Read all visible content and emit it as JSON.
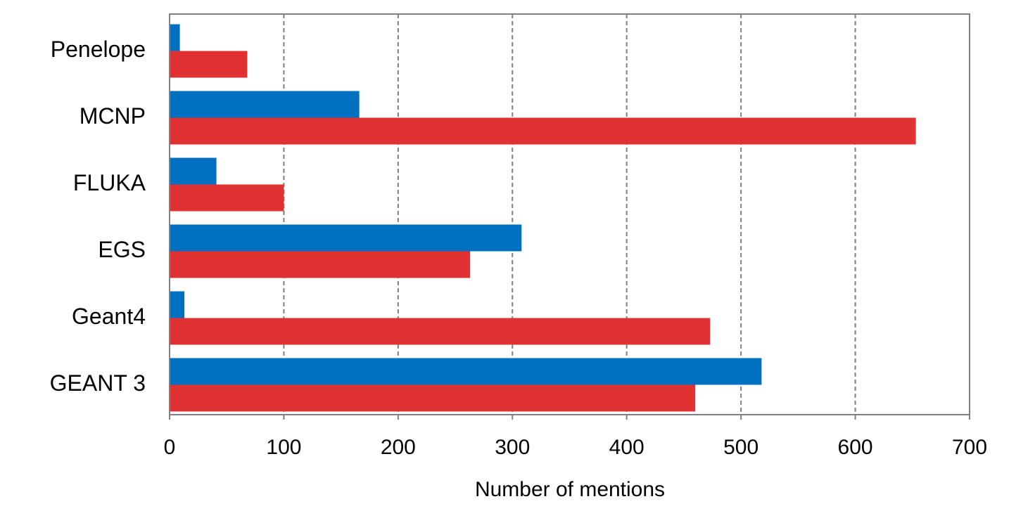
{
  "chart_data": {
    "type": "hbar",
    "x_label": "Number of mentions",
    "categories": [
      "Penelope",
      "MCNP",
      "FLUKA",
      "EGS",
      "Geant4",
      "GEANT 3"
    ],
    "series": [
      {
        "color": "#0070c0",
        "values": [
          9,
          166,
          41,
          308,
          13,
          518
        ]
      },
      {
        "color": "#e03232",
        "values": [
          68,
          653,
          100,
          263,
          473,
          460
        ]
      }
    ],
    "xlim": [
      0,
      700
    ],
    "xticks": [
      0,
      100,
      200,
      300,
      400,
      500,
      600,
      700
    ],
    "grid": true
  }
}
